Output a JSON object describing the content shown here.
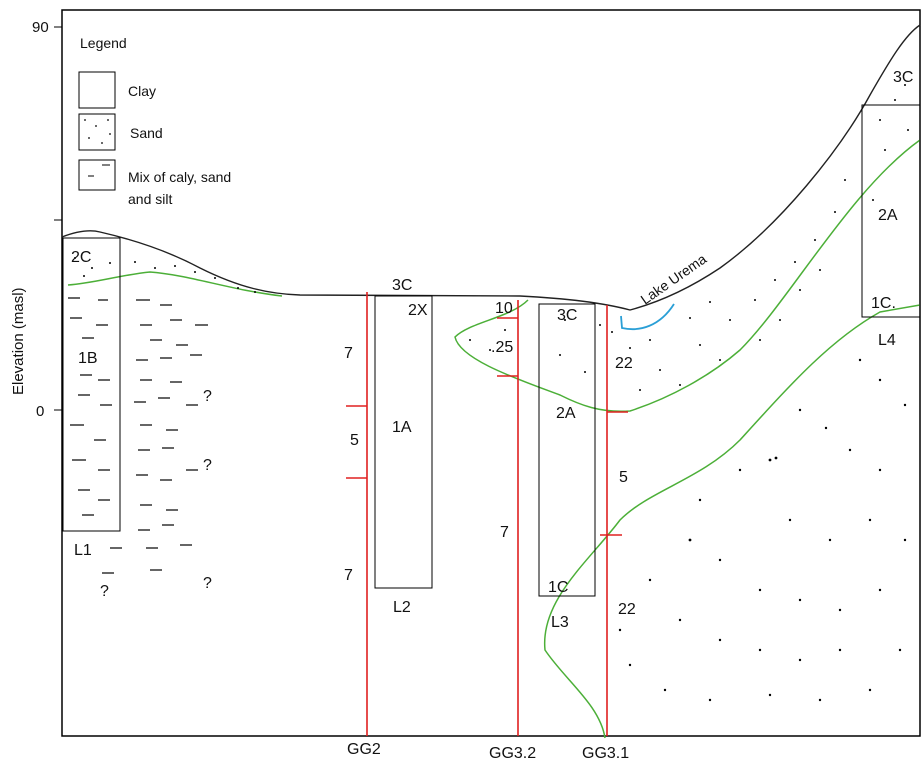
{
  "axis": {
    "ylabel": "Elevation (masl)",
    "ticks": [
      "90",
      "0"
    ]
  },
  "legend": {
    "title": "Legend",
    "items": [
      {
        "label": "Clay"
      },
      {
        "label": "Sand"
      },
      {
        "label_line1": "Mix of caly, sand",
        "label_line2": "and silt"
      }
    ]
  },
  "logs": {
    "L1": {
      "name": "L1",
      "top": "2C",
      "mid": "1B"
    },
    "L2": {
      "name": "L2",
      "top": "3C",
      "mid": "1A",
      "side": "2X"
    },
    "L3": {
      "name": "L3",
      "top": "3C",
      "mid": "2A",
      "bottom": "1C"
    },
    "L4": {
      "name": "L4",
      "top": "3C",
      "mid": "2A",
      "bottom": "1C."
    }
  },
  "lake": "Lake Urema",
  "unknown_mark": "?",
  "profiles": {
    "GG2": {
      "name": "GG2",
      "segments": [
        "7",
        "5",
        "7"
      ]
    },
    "GG3_2": {
      "name": "GG3.2",
      "segments": [
        "10",
        ".25",
        "7"
      ]
    },
    "GG3_1": {
      "name": "GG3.1",
      "segments": [
        "22",
        "5",
        "22"
      ]
    }
  },
  "colors": {
    "frame": "#000000",
    "boundary": "#4caf38",
    "profile": "#e02020",
    "lake": "#2a9fd6"
  }
}
